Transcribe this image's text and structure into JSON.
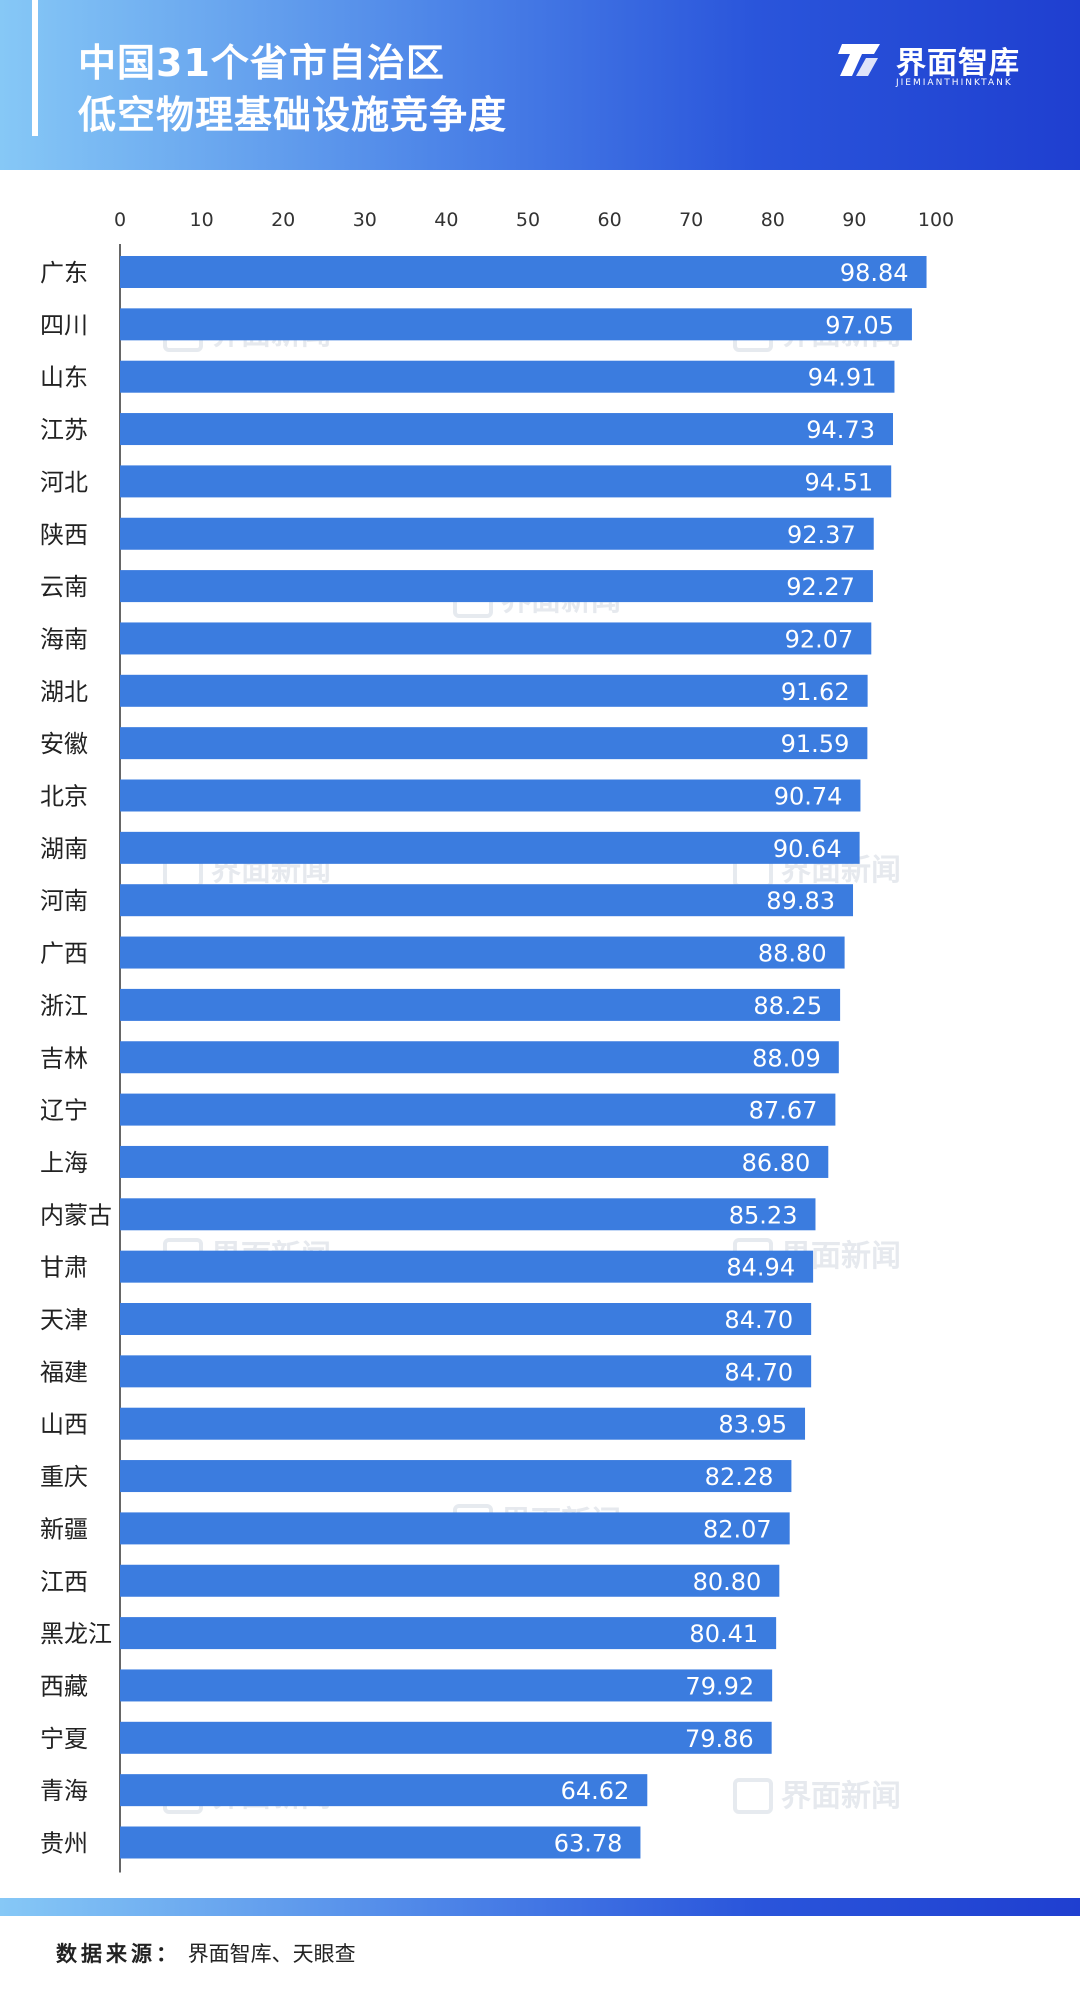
{
  "header": {
    "title_line_1": "中国31个省市自治区",
    "title_line_2": "低空物理基础设施竞争度",
    "brand_name": "界面智库",
    "brand_sub": "JIEMIANTHINKTANK"
  },
  "watermark_text": "界面新闻",
  "footer": {
    "source_label": "数据来源：",
    "source_value": "界面智库、天眼查"
  },
  "colors": {
    "bar": "#3b7cdf",
    "header_start": "#86c8f6",
    "header_end": "#1f3fd0"
  },
  "chart_data": {
    "type": "bar",
    "orientation": "horizontal",
    "title": "中国31个省市自治区 低空物理基础设施竞争度",
    "xlim": [
      0,
      100
    ],
    "x_ticks": [
      0,
      10,
      20,
      30,
      40,
      50,
      60,
      70,
      80,
      90,
      100
    ],
    "x_axis_position": "top",
    "grid": false,
    "categories": [
      "广东",
      "四川",
      "山东",
      "江苏",
      "河北",
      "陕西",
      "云南",
      "海南",
      "湖北",
      "安徽",
      "北京",
      "湖南",
      "河南",
      "广西",
      "浙江",
      "吉林",
      "辽宁",
      "上海",
      "内蒙古",
      "甘肃",
      "天津",
      "福建",
      "山西",
      "重庆",
      "新疆",
      "江西",
      "黑龙江",
      "西藏",
      "宁夏",
      "青海",
      "贵州"
    ],
    "values": [
      98.84,
      97.05,
      94.91,
      94.73,
      94.51,
      92.37,
      92.27,
      92.07,
      91.62,
      91.59,
      90.74,
      90.64,
      89.83,
      88.8,
      88.25,
      88.09,
      87.67,
      86.8,
      85.23,
      84.94,
      84.7,
      84.7,
      83.95,
      82.28,
      82.07,
      80.8,
      80.41,
      79.92,
      79.86,
      64.62,
      63.78
    ],
    "value_labels": [
      "98.84",
      "97.05",
      "94.91",
      "94.73",
      "94.51",
      "92.37",
      "92.27",
      "92.07",
      "91.62",
      "91.59",
      "90.74",
      "90.64",
      "89.83",
      "88.80",
      "88.25",
      "88.09",
      "87.67",
      "86.80",
      "85.23",
      "84.94",
      "84.70",
      "84.70",
      "83.95",
      "82.28",
      "82.07",
      "80.80",
      "80.41",
      "79.92",
      "79.86",
      "64.62",
      "63.78"
    ]
  }
}
